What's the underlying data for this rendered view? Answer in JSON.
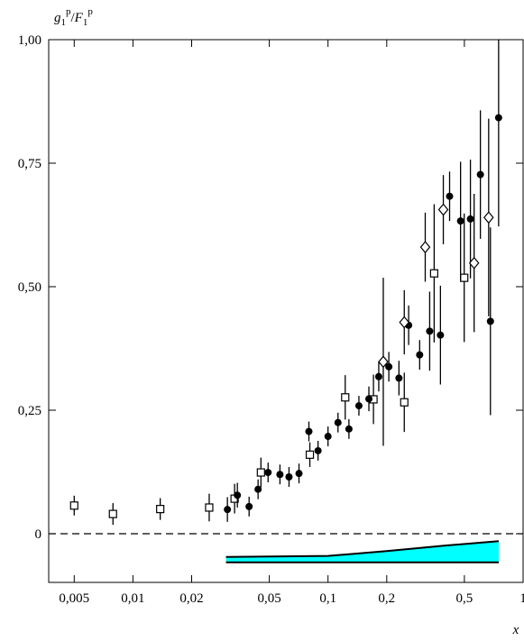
{
  "chart_data": {
    "type": "scatter",
    "ylabel_parts": [
      "g",
      "1",
      "p",
      "/",
      "F",
      "1",
      "p"
    ],
    "xlabel": "x",
    "log_x": true,
    "xlim": [
      0.0037,
      1.0
    ],
    "ylim": [
      -0.0985,
      1.0
    ],
    "xticks": [
      {
        "value": 0.005,
        "label": "0,005"
      },
      {
        "value": 0.01,
        "label": "0,01"
      },
      {
        "value": 0.02,
        "label": "0,02"
      },
      {
        "value": 0.05,
        "label": "0,05"
      },
      {
        "value": 0.1,
        "label": "0,1"
      },
      {
        "value": 0.2,
        "label": "0,2"
      },
      {
        "value": 0.5,
        "label": "0,5"
      },
      1
    ],
    "yticks": [
      0,
      {
        "value": 0.25,
        "label": "0,25"
      },
      {
        "value": 0.5,
        "label": "0,50"
      },
      {
        "value": 0.75,
        "label": "0,75"
      },
      {
        "value": 1.0,
        "label": "1,00"
      }
    ],
    "reference_line": 0,
    "series": [
      {
        "marker": "square",
        "color": "#000000",
        "x": [
          0.005,
          0.0079,
          0.0138,
          0.0246,
          0.0332,
          0.0453,
          0.0807,
          0.1225,
          0.171,
          0.246,
          0.35,
          0.499
        ],
        "values": [
          0.057,
          0.04,
          0.05,
          0.053,
          0.071,
          0.124,
          0.16,
          0.276,
          0.272,
          0.266,
          0.527,
          0.518
        ],
        "errors": [
          0.02,
          0.022,
          0.022,
          0.028,
          0.03,
          0.03,
          0.025,
          0.045,
          0.05,
          0.06,
          0.14,
          0.13
        ]
      },
      {
        "marker": "circle",
        "color": "#000000",
        "x": [
          0.0305,
          0.0343,
          0.0394,
          0.0438,
          0.0493,
          0.0567,
          0.0631,
          0.071,
          0.0798,
          0.0889,
          0.1,
          0.1125,
          0.128,
          0.144,
          0.162,
          0.182,
          0.205,
          0.231,
          0.259,
          0.295,
          0.332,
          0.377,
          0.42,
          0.478,
          0.537,
          0.604,
          0.68,
          0.749
        ],
        "values": [
          0.049,
          0.078,
          0.055,
          0.09,
          0.124,
          0.12,
          0.115,
          0.122,
          0.207,
          0.168,
          0.197,
          0.225,
          0.212,
          0.259,
          0.273,
          0.318,
          0.338,
          0.315,
          0.422,
          0.362,
          0.41,
          0.402,
          0.683,
          0.633,
          0.637,
          0.727,
          0.43,
          0.842
        ],
        "errors": [
          0.025,
          0.025,
          0.02,
          0.02,
          0.02,
          0.02,
          0.02,
          0.02,
          0.02,
          0.02,
          0.02,
          0.02,
          0.02,
          0.02,
          0.025,
          0.03,
          0.03,
          0.035,
          0.04,
          0.03,
          0.08,
          0.1,
          0.05,
          0.12,
          0.12,
          0.13,
          0.19,
          0.22
        ]
      },
      {
        "marker": "diamond",
        "color": "#000000",
        "x": [
          0.192,
          0.246,
          0.315,
          0.39,
          0.561,
          0.666
        ],
        "values": [
          0.348,
          0.428,
          0.58,
          0.656,
          0.548,
          0.64
        ],
        "errors": [
          0.17,
          0.065,
          0.07,
          0.07,
          0.14,
          0.2
        ]
      }
    ],
    "band": {
      "color": "#00ffff",
      "x": [
        0.03,
        0.1,
        0.2,
        0.4,
        0.75
      ],
      "low": [
        -0.058,
        -0.058,
        -0.058,
        -0.058,
        -0.058
      ],
      "high": [
        -0.047,
        -0.045,
        -0.035,
        -0.024,
        -0.015
      ]
    }
  }
}
